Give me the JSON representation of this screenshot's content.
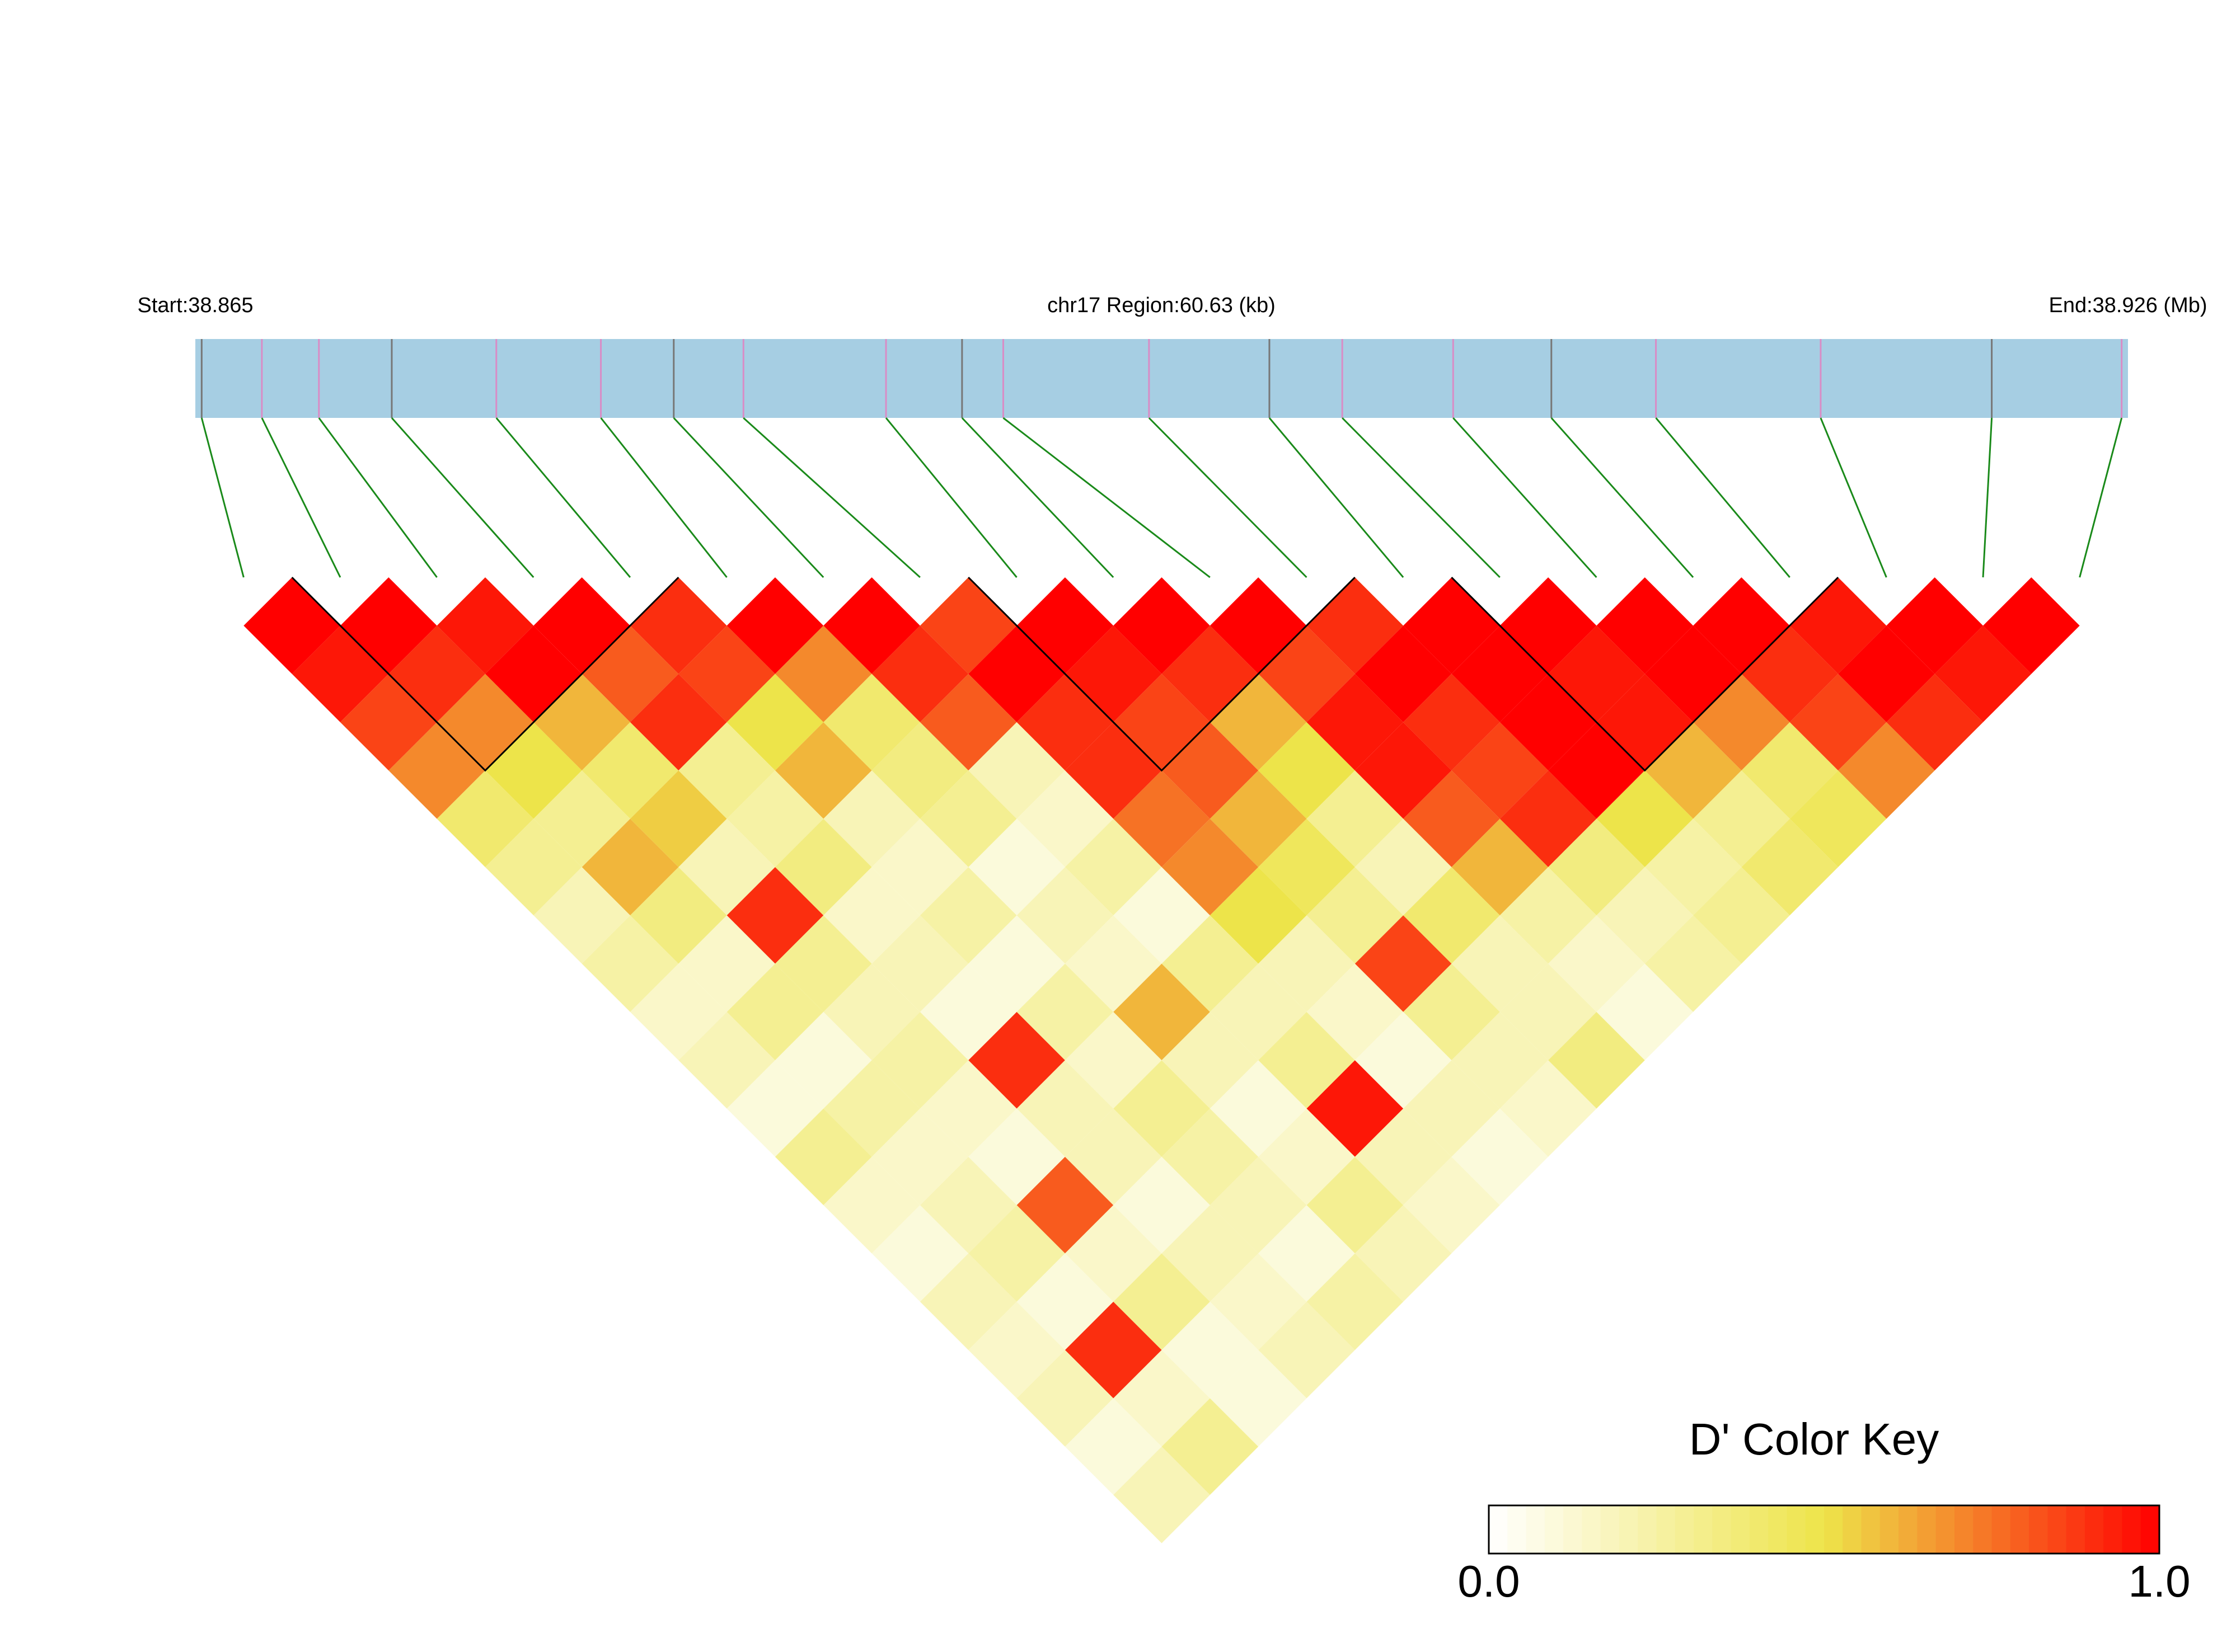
{
  "chart_data": {
    "type": "ld_heatmap",
    "start_label": "Start:38.865",
    "region_label": "chr17 Region:60.63 (kb)",
    "end_label": "End:38.926 (Mb)",
    "key_title": "D' Color Key",
    "xlim": [
      38.865,
      38.926
    ],
    "positions": [
      38.8652,
      38.8671,
      38.8689,
      38.8712,
      38.8745,
      38.8778,
      38.8801,
      38.8823,
      38.8868,
      38.8892,
      38.8905,
      38.8951,
      38.8989,
      38.9012,
      38.9047,
      38.9078,
      38.9111,
      38.9163,
      38.9217,
      38.9258
    ],
    "dprime": [
      [
        1,
        1,
        0.95,
        1,
        0.9,
        1,
        1,
        0.85,
        1,
        1,
        1,
        0.9,
        1,
        1,
        1,
        1,
        0.95,
        1,
        1
      ],
      [
        0.95,
        0.9,
        1,
        0.8,
        0.85,
        0.7,
        0.9,
        1,
        0.95,
        0.9,
        0.85,
        1,
        1,
        0.95,
        1,
        0.9,
        1,
        0.95
      ],
      [
        0.85,
        0.7,
        0.6,
        0.9,
        0.5,
        0.4,
        0.8,
        0.9,
        0.85,
        0.6,
        0.95,
        0.9,
        1,
        0.95,
        0.7,
        0.85,
        0.9
      ],
      [
        0.7,
        0.5,
        0.4,
        0.3,
        0.6,
        0.35,
        0.2,
        0.9,
        0.8,
        0.5,
        0.95,
        0.85,
        1,
        0.6,
        0.4,
        0.7
      ],
      [
        0.4,
        0.3,
        0.55,
        0.25,
        0.2,
        0.3,
        0.15,
        0.75,
        0.6,
        0.3,
        0.8,
        0.9,
        0.5,
        0.3,
        0.45
      ],
      [
        0.3,
        0.6,
        0.2,
        0.35,
        0.15,
        0.1,
        0.25,
        0.7,
        0.45,
        0.2,
        0.6,
        0.35,
        0.25,
        0.4
      ],
      [
        0.2,
        0.35,
        0.9,
        0.15,
        0.25,
        0.2,
        0.1,
        0.5,
        0.3,
        0.4,
        0.25,
        0.2,
        0.3
      ],
      [
        0.25,
        0.15,
        0.3,
        0.2,
        0.1,
        0.15,
        0.3,
        0.2,
        0.85,
        0.2,
        0.15,
        0.25
      ],
      [
        0.15,
        0.3,
        0.2,
        0.1,
        0.25,
        0.6,
        0.2,
        0.15,
        0.3,
        0.2,
        0.1
      ],
      [
        0.2,
        0.1,
        0.25,
        0.9,
        0.15,
        0.2,
        0.3,
        0.1,
        0.2,
        0.35
      ],
      [
        0.1,
        0.25,
        0.15,
        0.2,
        0.3,
        0.1,
        0.95,
        0.2,
        0.15
      ],
      [
        0.3,
        0.15,
        0.1,
        0.2,
        0.25,
        0.15,
        0.2,
        0.1
      ],
      [
        0.15,
        0.2,
        0.8,
        0.1,
        0.2,
        0.3,
        0.15
      ],
      [
        0.1,
        0.25,
        0.15,
        0.2,
        0.1,
        0.2
      ],
      [
        0.2,
        0.1,
        0.3,
        0.15,
        0.25
      ],
      [
        0.15,
        0.9,
        0.1,
        0.2
      ],
      [
        0.2,
        0.15,
        0.1
      ],
      [
        0.1,
        0.3
      ],
      [
        0.2
      ]
    ],
    "blocks": [
      [
        1,
        4
      ],
      [
        8,
        11
      ],
      [
        13,
        16
      ]
    ],
    "colors": [
      "#ffffff",
      "#ede44a",
      "#ff0000"
    ],
    "key_ticks": [
      {
        "value": 0,
        "label": "0.0"
      },
      {
        "value": 1,
        "label": "1.0"
      }
    ]
  }
}
